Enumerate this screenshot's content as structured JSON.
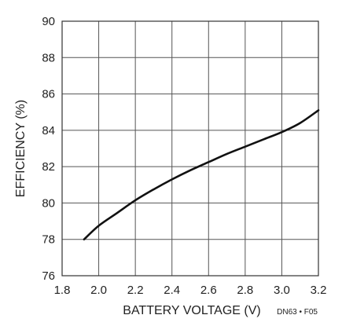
{
  "chart_data": {
    "type": "line",
    "xlabel": "BATTERY VOLTAGE (V)",
    "ylabel": "EFFICIENCY (%)",
    "xlim": [
      1.8,
      3.2
    ],
    "ylim": [
      76,
      90
    ],
    "x_ticks": [
      1.8,
      2.0,
      2.2,
      2.4,
      2.6,
      2.8,
      3.0,
      3.2
    ],
    "x_tick_labels": [
      "1.8",
      "2.0",
      "2.2",
      "2.4",
      "2.6",
      "2.8",
      "3.0",
      "3.2"
    ],
    "y_ticks": [
      76,
      78,
      80,
      82,
      84,
      86,
      88,
      90
    ],
    "y_tick_labels": [
      "76",
      "78",
      "80",
      "82",
      "84",
      "86",
      "88",
      "90"
    ],
    "grid": true,
    "series": [
      {
        "x": [
          1.92,
          2.0,
          2.1,
          2.2,
          2.3,
          2.4,
          2.5,
          2.6,
          2.7,
          2.8,
          2.9,
          3.0,
          3.1,
          3.2
        ],
        "y": [
          78.0,
          78.75,
          79.45,
          80.15,
          80.75,
          81.3,
          81.8,
          82.25,
          82.7,
          83.1,
          83.5,
          83.9,
          84.4,
          85.1
        ]
      }
    ],
    "note": "DN63 • F05",
    "colors": {
      "grid": "#555555",
      "line": "#111111",
      "text": "#222222"
    }
  }
}
